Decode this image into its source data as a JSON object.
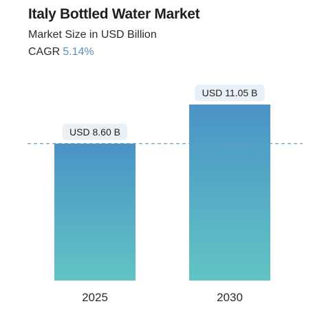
{
  "header": {
    "title": "Italy Bottled Water Market",
    "subtitle": "Market Size in USD Billion",
    "cagr_label": "CAGR",
    "cagr_value": "5.14%"
  },
  "colors": {
    "bar_top": "#4a93c6",
    "bar_bottom": "#62c4c4",
    "label_bg": "#e9f1f6",
    "reference_line": "#6e9bb5",
    "accent_text": "#5b8fb8"
  },
  "chart_data": {
    "type": "bar",
    "categories": [
      "2025",
      "2030"
    ],
    "values": [
      8.6,
      11.05
    ],
    "data_labels": [
      "USD 8.60 B",
      "USD 11.05 B"
    ],
    "title": "Italy Bottled Water Market",
    "subtitle": "Market Size in USD Billion",
    "ylim": [
      0,
      11.05
    ],
    "reference_line_value": 8.6,
    "grid": false,
    "legend": "none"
  }
}
